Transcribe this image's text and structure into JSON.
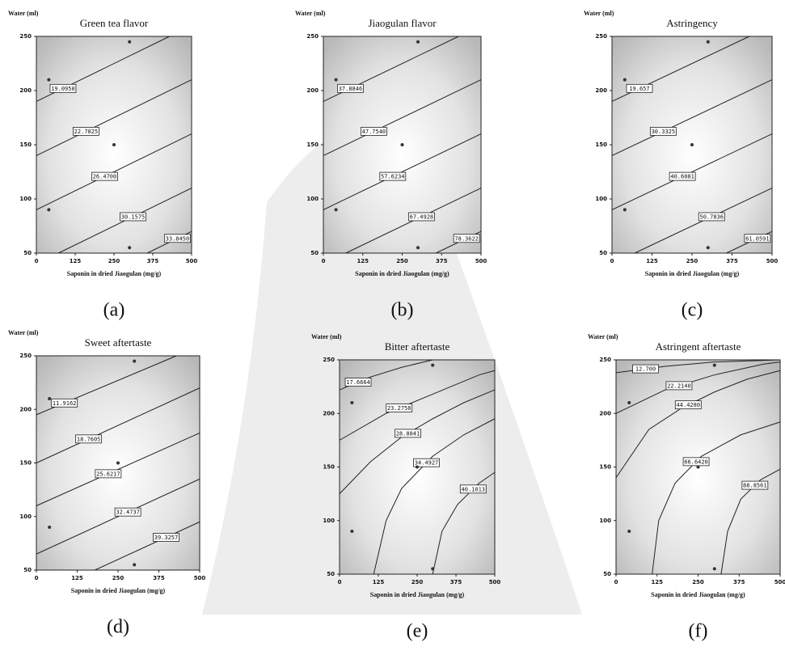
{
  "chart_data": [
    {
      "type": "contour",
      "title": "Green tea flavor",
      "ylabel": "Water (ml)",
      "xlabel": "Saponin in dried Jiaogulan (mg/g)",
      "panel_label": "(a)",
      "xlim": [
        0,
        500
      ],
      "ylim": [
        50,
        250
      ],
      "xticks": [
        0,
        125,
        250,
        375,
        500
      ],
      "yticks": [
        50,
        100,
        150,
        200,
        250
      ],
      "contours": [
        {
          "label": "19.0950",
          "x": [
            0,
            429
          ],
          "y": [
            190,
            250
          ]
        },
        {
          "label": "22.7825",
          "x": [
            0,
            500
          ],
          "y": [
            140,
            210
          ]
        },
        {
          "label": "26.4700",
          "x": [
            0,
            500
          ],
          "y": [
            90,
            160
          ]
        },
        {
          "label": "30.1575",
          "x": [
            71,
            500
          ],
          "y": [
            50,
            110
          ]
        },
        {
          "label": "33.8450",
          "x": [
            357,
            500
          ],
          "y": [
            50,
            70
          ]
        }
      ],
      "points": {
        "x": [
          40,
          40,
          300,
          300,
          250
        ],
        "y": [
          210,
          90,
          245,
          55,
          150
        ]
      }
    },
    {
      "type": "contour",
      "title": "Jiaogulan flavor",
      "ylabel": "Water (ml)",
      "xlabel": "Saponin in dried Jiaogulan (mg/g)",
      "panel_label": "(b)",
      "xlim": [
        0,
        500
      ],
      "ylim": [
        50,
        250
      ],
      "xticks": [
        0,
        125,
        250,
        375,
        500
      ],
      "yticks": [
        50,
        100,
        150,
        200,
        250
      ],
      "contours": [
        {
          "label": "37.8846",
          "x": [
            0,
            429
          ],
          "y": [
            190,
            250
          ]
        },
        {
          "label": "47.7540",
          "x": [
            0,
            500
          ],
          "y": [
            140,
            210
          ]
        },
        {
          "label": "57.6234",
          "x": [
            0,
            500
          ],
          "y": [
            90,
            160
          ]
        },
        {
          "label": "67.4928",
          "x": [
            71,
            500
          ],
          "y": [
            50,
            110
          ]
        },
        {
          "label": "78.3622",
          "x": [
            357,
            500
          ],
          "y": [
            50,
            70
          ]
        }
      ],
      "points": {
        "x": [
          40,
          40,
          300,
          300,
          250
        ],
        "y": [
          210,
          90,
          245,
          55,
          150
        ]
      }
    },
    {
      "type": "contour",
      "title": "Astringency",
      "ylabel": "Water (ml)",
      "xlabel": "Saponin in dried Jiaogulan (mg/g)",
      "panel_label": "(c)",
      "xlim": [
        0,
        500
      ],
      "ylim": [
        50,
        250
      ],
      "xticks": [
        0,
        125,
        250,
        375,
        500
      ],
      "yticks": [
        50,
        100,
        150,
        200,
        250
      ],
      "contours": [
        {
          "label": "19.657",
          "x": [
            0,
            429
          ],
          "y": [
            190,
            250
          ]
        },
        {
          "label": "30.3325",
          "x": [
            0,
            500
          ],
          "y": [
            140,
            210
          ]
        },
        {
          "label": "40.6081",
          "x": [
            0,
            500
          ],
          "y": [
            90,
            160
          ]
        },
        {
          "label": "50.7836",
          "x": [
            71,
            500
          ],
          "y": [
            50,
            110
          ]
        },
        {
          "label": "61.0591",
          "x": [
            357,
            500
          ],
          "y": [
            50,
            70
          ]
        }
      ],
      "points": {
        "x": [
          40,
          40,
          300,
          300,
          250
        ],
        "y": [
          210,
          90,
          245,
          55,
          150
        ]
      }
    },
    {
      "type": "contour",
      "title": "Sweet aftertaste",
      "ylabel": "Water (ml)",
      "xlabel": "Saponin in dried Jiaogulan (mg/g)",
      "panel_label": "(d)",
      "xlim": [
        0,
        500
      ],
      "ylim": [
        50,
        250
      ],
      "xticks": [
        0,
        125,
        250,
        375,
        500
      ],
      "yticks": [
        50,
        100,
        150,
        200,
        250
      ],
      "contours": [
        {
          "label": "11.9162",
          "x": [
            0,
            429
          ],
          "y": [
            195,
            250
          ]
        },
        {
          "label": "18.7605",
          "x": [
            0,
            500
          ],
          "y": [
            150,
            220
          ]
        },
        {
          "label": "25.6217",
          "x": [
            0,
            500
          ],
          "y": [
            110,
            178
          ]
        },
        {
          "label": "32.4737",
          "x": [
            0,
            500
          ],
          "y": [
            65,
            135
          ]
        },
        {
          "label": "39.3257",
          "x": [
            179,
            500
          ],
          "y": [
            50,
            95
          ]
        }
      ],
      "points": {
        "x": [
          40,
          40,
          300,
          300,
          250
        ],
        "y": [
          210,
          90,
          245,
          55,
          150
        ]
      }
    },
    {
      "type": "contour",
      "title": "Bitter aftertaste",
      "ylabel": "Water (ml)",
      "xlabel": "Saponin in dried Jiaogulan (mg/g)",
      "panel_label": "(e)",
      "xlim": [
        0,
        500
      ],
      "ylim": [
        50,
        250
      ],
      "xticks": [
        0,
        125,
        250,
        375,
        500
      ],
      "yticks": [
        50,
        100,
        150,
        200,
        250
      ],
      "contours": [
        {
          "label": "17.6664",
          "x": [
            0,
            100,
            200,
            300
          ],
          "y": [
            222,
            234,
            243,
            250
          ]
        },
        {
          "label": "23.2758",
          "x": [
            0,
            150,
            300,
            450,
            500
          ],
          "y": [
            175,
            200,
            218,
            236,
            240
          ]
        },
        {
          "label": "28.8841",
          "x": [
            0,
            100,
            200,
            300,
            400,
            500
          ],
          "y": [
            125,
            155,
            178,
            195,
            210,
            222
          ]
        },
        {
          "label": "34.4927",
          "x": [
            110,
            150,
            200,
            300,
            400,
            500
          ],
          "y": [
            50,
            100,
            130,
            160,
            180,
            195
          ]
        },
        {
          "label": "40.1013",
          "x": [
            300,
            330,
            380,
            450,
            500
          ],
          "y": [
            50,
            90,
            115,
            135,
            145
          ]
        }
      ],
      "points": {
        "x": [
          40,
          40,
          300,
          300,
          250
        ],
        "y": [
          210,
          90,
          245,
          55,
          150
        ]
      }
    },
    {
      "type": "contour",
      "title": "Astringent aftertaste",
      "ylabel": "Water (ml)",
      "xlabel": "Saponin in dried Jiaogulan (mg/g)",
      "panel_label": "(f)",
      "xlim": [
        0,
        500
      ],
      "ylim": [
        50,
        250
      ],
      "xticks": [
        0,
        125,
        250,
        375,
        500
      ],
      "yticks": [
        50,
        100,
        150,
        200,
        250
      ],
      "contours": [
        {
          "label": "12.700",
          "x": [
            0,
            150,
            300,
            500
          ],
          "y": [
            238,
            244,
            248,
            250
          ]
        },
        {
          "label": "22.2140",
          "x": [
            0,
            150,
            300,
            450,
            500
          ],
          "y": [
            200,
            222,
            236,
            246,
            248
          ]
        },
        {
          "label": "44.4280",
          "x": [
            0,
            100,
            200,
            300,
            400,
            500
          ],
          "y": [
            140,
            185,
            205,
            220,
            232,
            240
          ]
        },
        {
          "label": "66.6420",
          "x": [
            110,
            130,
            180,
            260,
            380,
            500
          ],
          "y": [
            50,
            100,
            135,
            160,
            180,
            192
          ]
        },
        {
          "label": "88.8561",
          "x": [
            320,
            340,
            380,
            440,
            500
          ],
          "y": [
            50,
            90,
            120,
            138,
            148
          ]
        }
      ],
      "points": {
        "x": [
          40,
          40,
          300,
          300,
          250
        ],
        "y": [
          210,
          90,
          245,
          55,
          150
        ]
      }
    }
  ]
}
